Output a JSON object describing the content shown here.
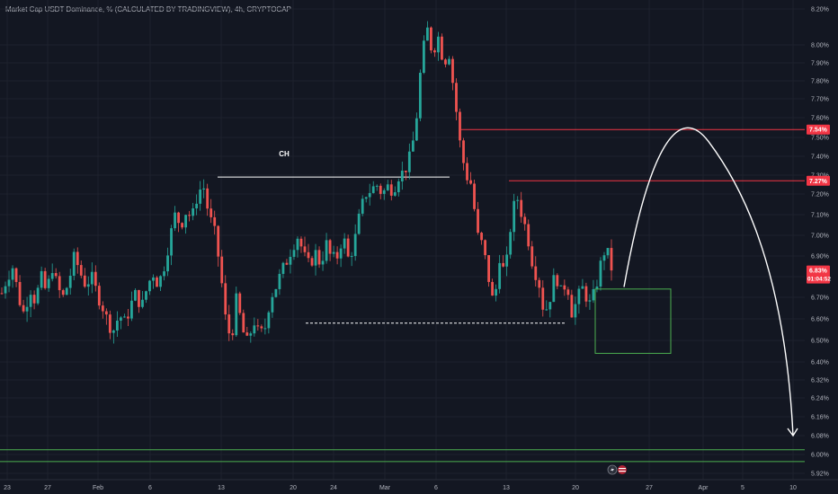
{
  "chart_data": {
    "type": "candlestick",
    "title": "Market Cap USDT Dominance, % (CALCULATED BY TRADINGVIEW), 4h, CRYPTOCAP",
    "y_ticks": [
      "8.20%",
      "8.00%",
      "7.90%",
      "7.80%",
      "7.70%",
      "7.60%",
      "7.50%",
      "7.40%",
      "7.30%",
      "7.20%",
      "7.10%",
      "7.00%",
      "6.90%",
      "6.80%",
      "6.70%",
      "6.60%",
      "6.50%",
      "6.40%",
      "6.32%",
      "6.24%",
      "6.16%",
      "6.08%",
      "6.00%",
      "5.92%"
    ],
    "x_ticks": [
      "23",
      "27",
      "Feb",
      "6",
      "13",
      "20",
      "24",
      "Mar",
      "6",
      "13",
      "20",
      "27",
      "Apr",
      "5",
      "10"
    ],
    "annotation_label": "CH",
    "price_tags": [
      {
        "label": "7.54%",
        "value": 7.54,
        "color": "#f23645"
      },
      {
        "label": "7.27%",
        "value": 7.27,
        "color": "#f23645"
      },
      {
        "label": "6.83%",
        "value": 6.83,
        "color": "#f23645",
        "sub": "01:04:52"
      }
    ],
    "horizontal_levels": [
      {
        "value": 7.54,
        "color": "#f23645",
        "style": "solid"
      },
      {
        "value": 7.27,
        "color": "#f23645",
        "style": "solid"
      },
      {
        "value": 7.29,
        "color": "#ffffff",
        "style": "solid"
      },
      {
        "value": 6.58,
        "color": "#ffffff",
        "style": "dashed"
      },
      {
        "value": 6.02,
        "color": "#4caf50",
        "style": "solid"
      },
      {
        "value": 5.97,
        "color": "#4caf50",
        "style": "solid"
      }
    ],
    "zone": {
      "low": 6.44,
      "high": 6.74,
      "color": "#4caf50"
    },
    "projection": [
      {
        "date": "Mar 22",
        "value": 6.75
      },
      {
        "date": "Apr 3",
        "value": 7.44
      },
      {
        "date": "Apr 10",
        "value": 6.08
      }
    ],
    "candle_path": [
      6.72,
      6.8,
      6.85,
      6.7,
      6.62,
      6.75,
      6.68,
      6.8,
      6.72,
      6.85,
      6.74,
      6.7,
      6.78,
      6.9,
      6.82,
      6.76,
      6.8,
      6.72,
      6.66,
      6.58,
      6.55,
      6.62,
      6.58,
      6.66,
      6.72,
      6.65,
      6.75,
      6.82,
      6.76,
      6.85,
      6.98,
      7.1,
      7.05,
      7.12,
      7.08,
      7.2,
      7.25,
      7.1,
      7.02,
      6.85,
      6.6,
      6.5,
      6.7,
      6.55,
      6.48,
      6.6,
      6.52,
      6.55,
      6.7,
      6.75,
      6.82,
      6.88,
      6.95,
      7.0,
      6.9,
      6.85,
      6.92,
      6.86,
      6.96,
      6.88,
      6.9,
      7.0,
      6.88,
      6.96,
      7.1,
      7.2,
      7.22,
      7.25,
      7.2,
      7.24,
      7.22,
      7.3,
      7.32,
      7.4,
      7.55,
      7.9,
      8.1,
      7.95,
      8.05,
      7.9,
      7.95,
      7.7,
      7.45,
      7.3,
      7.25,
      7.0,
      6.95,
      6.8,
      6.65,
      6.9,
      6.8,
      7.05,
      7.2,
      7.1,
      7.0,
      6.85,
      6.78,
      6.62,
      6.7,
      6.82,
      6.72,
      6.78,
      6.62,
      6.7,
      6.75,
      6.66,
      6.72,
      6.85,
      6.95,
      6.83
    ]
  },
  "dates_shown": {
    "countdown": "01:04:52"
  }
}
